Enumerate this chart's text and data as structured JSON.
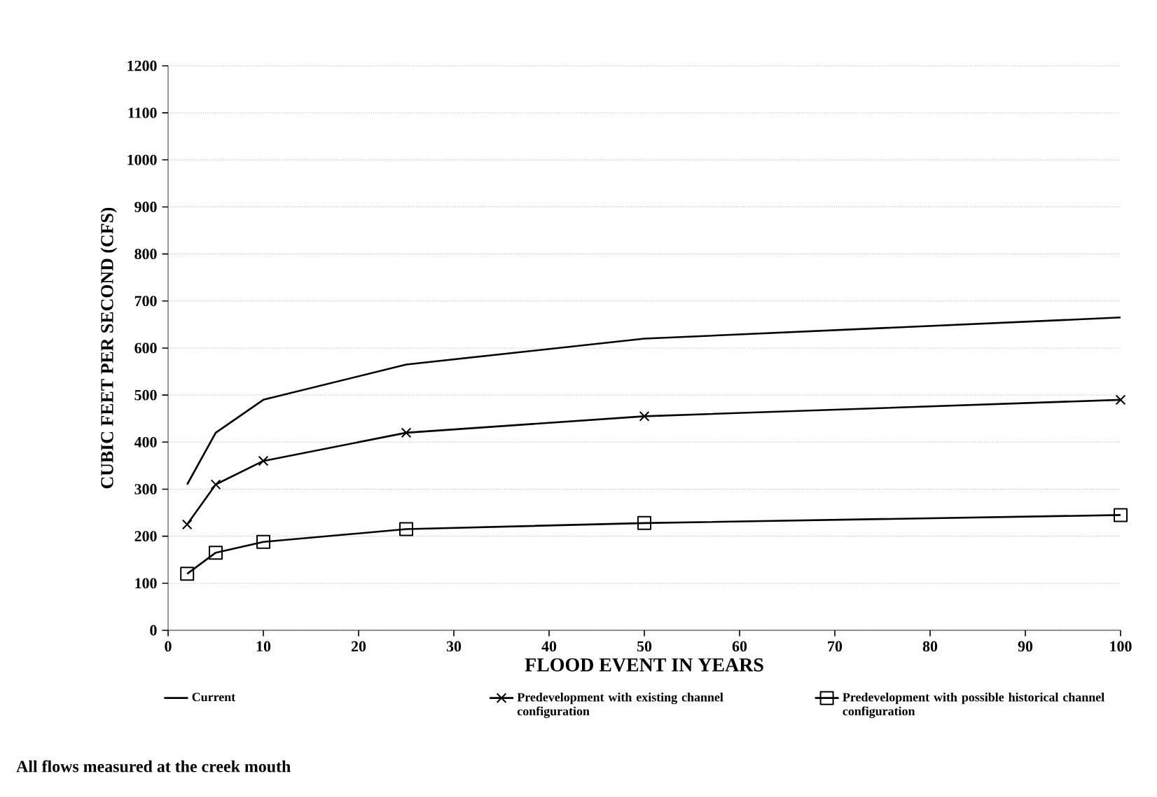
{
  "chart_data": {
    "type": "line",
    "xlabel": "FLOOD EVENT IN YEARS",
    "ylabel": "CUBIC FEET PER SECOND (CFS)",
    "x": [
      2,
      5,
      10,
      25,
      50,
      100
    ],
    "series": [
      {
        "name": "Current",
        "color": "#000000",
        "marker": "none",
        "values": [
          310,
          420,
          490,
          565,
          620,
          665
        ]
      },
      {
        "name": "Predevelopment with existing channel configuration",
        "color": "#000000",
        "marker": "cross",
        "values": [
          225,
          310,
          360,
          420,
          455,
          490
        ]
      },
      {
        "name": "Predevelopment with possible historical channel configuration",
        "color": "#000000",
        "marker": "square",
        "values": [
          120,
          165,
          188,
          215,
          228,
          245
        ]
      }
    ],
    "xlim": [
      0,
      100
    ],
    "xticks": [
      0,
      10,
      20,
      30,
      40,
      50,
      60,
      70,
      80,
      90,
      100
    ],
    "ylim": [
      0,
      1200
    ],
    "yticks": [
      0,
      100,
      200,
      300,
      400,
      500,
      600,
      700,
      800,
      900,
      1000,
      1100,
      1200
    ],
    "grid": "y",
    "legend": "bottom",
    "line_style": "solid",
    "annotations": [
      "All flows measured at the creek mouth"
    ]
  }
}
